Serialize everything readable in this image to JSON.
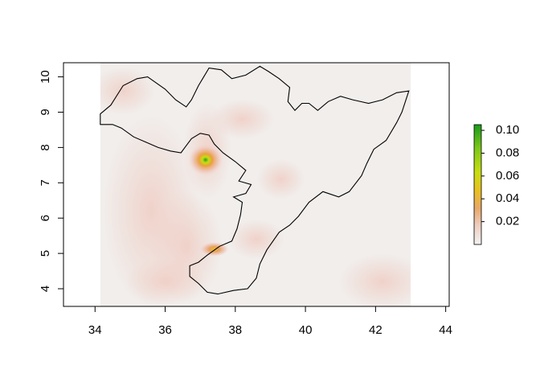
{
  "chart_data": {
    "type": "heatmap",
    "title": "",
    "xlabel": "",
    "ylabel": "",
    "xlim": [
      33.1,
      44.1
    ],
    "ylim": [
      3.5,
      10.4
    ],
    "raster_extent": {
      "x": [
        34.15,
        43.0
      ],
      "y": [
        3.5,
        10.4
      ]
    },
    "x_ticks": [
      "34",
      "36",
      "38",
      "40",
      "42",
      "44"
    ],
    "x_tick_values": [
      34,
      36,
      38,
      40,
      42,
      44
    ],
    "y_ticks": [
      "4",
      "5",
      "6",
      "7",
      "8",
      "9",
      "10"
    ],
    "y_tick_values": [
      4,
      5,
      6,
      7,
      8,
      9,
      10
    ],
    "legend": {
      "placement": "right",
      "min": 0.0,
      "max": 0.105,
      "tick_labels": [
        "0.02",
        "0.04",
        "0.06",
        "0.08",
        "0.10"
      ],
      "tick_values": [
        0.02,
        0.04,
        0.06,
        0.08,
        0.1
      ],
      "colors": [
        "#f2f2f2",
        "#eecfc4",
        "#e8a86a",
        "#e8c020",
        "#c8dd10",
        "#7ec81a",
        "#1a9a1a"
      ]
    },
    "hotspots": [
      {
        "x": 37.15,
        "y": 7.65,
        "value": 0.1
      },
      {
        "x": 37.4,
        "y": 5.12,
        "value": 0.04
      }
    ],
    "boundary": [
      [
        34.15,
        8.95
      ],
      [
        34.45,
        9.2
      ],
      [
        34.8,
        9.75
      ],
      [
        35.2,
        9.95
      ],
      [
        35.5,
        10.0
      ],
      [
        36.0,
        9.65
      ],
      [
        36.3,
        9.35
      ],
      [
        36.6,
        9.15
      ],
      [
        36.75,
        9.35
      ],
      [
        36.95,
        9.75
      ],
      [
        37.25,
        10.25
      ],
      [
        37.6,
        10.2
      ],
      [
        37.9,
        9.95
      ],
      [
        38.3,
        10.05
      ],
      [
        38.7,
        10.3
      ],
      [
        38.95,
        10.15
      ],
      [
        39.25,
        9.95
      ],
      [
        39.55,
        9.7
      ],
      [
        39.5,
        9.3
      ],
      [
        39.7,
        9.05
      ],
      [
        39.9,
        9.25
      ],
      [
        40.1,
        9.25
      ],
      [
        40.35,
        9.05
      ],
      [
        40.65,
        9.3
      ],
      [
        41.0,
        9.45
      ],
      [
        41.35,
        9.35
      ],
      [
        41.8,
        9.25
      ],
      [
        42.2,
        9.35
      ],
      [
        42.6,
        9.55
      ],
      [
        42.95,
        9.6
      ],
      [
        42.75,
        9.0
      ],
      [
        42.6,
        8.7
      ],
      [
        42.3,
        8.2
      ],
      [
        41.95,
        7.95
      ],
      [
        41.75,
        7.55
      ],
      [
        41.6,
        7.2
      ],
      [
        41.25,
        6.75
      ],
      [
        40.95,
        6.6
      ],
      [
        40.5,
        6.75
      ],
      [
        40.1,
        6.45
      ],
      [
        39.8,
        6.05
      ],
      [
        39.55,
        5.8
      ],
      [
        39.25,
        5.6
      ],
      [
        38.9,
        5.1
      ],
      [
        38.7,
        4.7
      ],
      [
        38.6,
        4.3
      ],
      [
        38.35,
        4.0
      ],
      [
        37.95,
        3.95
      ],
      [
        37.5,
        3.85
      ],
      [
        37.2,
        3.9
      ],
      [
        36.95,
        4.15
      ],
      [
        36.7,
        4.35
      ],
      [
        36.7,
        4.65
      ],
      [
        36.95,
        4.75
      ],
      [
        37.2,
        4.95
      ],
      [
        37.55,
        5.2
      ],
      [
        37.9,
        5.35
      ],
      [
        38.05,
        5.7
      ],
      [
        38.15,
        6.1
      ],
      [
        38.2,
        6.45
      ],
      [
        37.95,
        6.6
      ],
      [
        38.3,
        6.7
      ],
      [
        38.45,
        6.95
      ],
      [
        38.1,
        7.05
      ],
      [
        38.3,
        7.35
      ],
      [
        38.0,
        7.6
      ],
      [
        37.65,
        7.85
      ],
      [
        37.4,
        8.1
      ],
      [
        37.25,
        8.35
      ],
      [
        37.0,
        8.4
      ],
      [
        36.75,
        8.25
      ],
      [
        36.6,
        8.05
      ],
      [
        36.45,
        7.85
      ],
      [
        36.15,
        7.9
      ],
      [
        35.8,
        8.0
      ],
      [
        35.45,
        8.15
      ],
      [
        35.1,
        8.3
      ],
      [
        34.75,
        8.55
      ],
      [
        34.5,
        8.65
      ],
      [
        34.15,
        8.65
      ]
    ]
  }
}
